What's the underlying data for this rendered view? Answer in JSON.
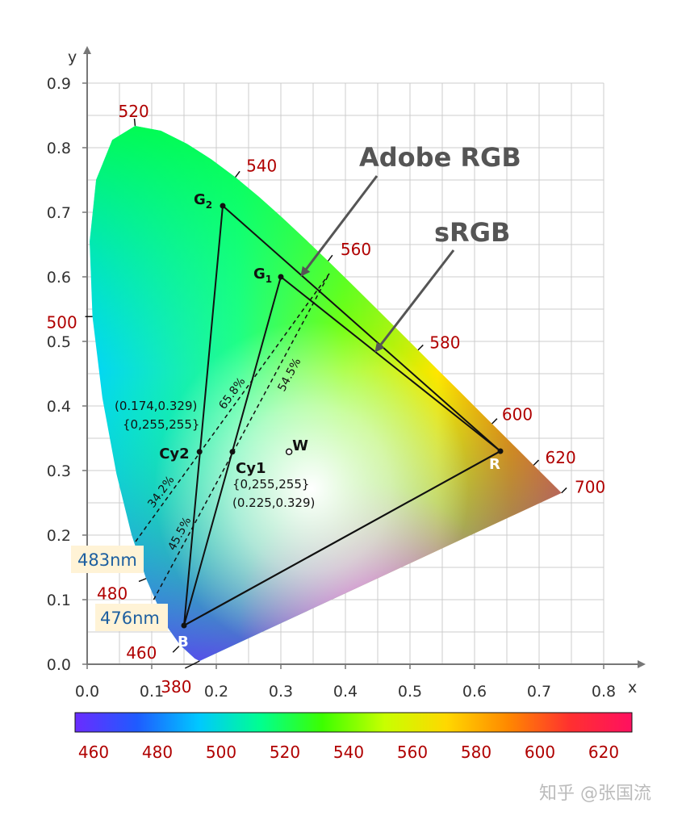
{
  "chart_data": {
    "type": "scatter",
    "xlabel": "x",
    "ylabel": "y",
    "xlim": [
      0,
      0.8
    ],
    "ylim": [
      0,
      0.9
    ],
    "xticks": [
      "0.0",
      "0.1",
      "0.2",
      "0.3",
      "0.4",
      "0.5",
      "0.6",
      "0.7",
      "0.8"
    ],
    "yticks": [
      "0.0",
      "0.1",
      "0.2",
      "0.3",
      "0.4",
      "0.5",
      "0.6",
      "0.7",
      "0.8",
      "0.9"
    ],
    "grid": true,
    "locus": [
      [
        0.1741,
        0.005
      ],
      [
        0.1666,
        0.0089
      ],
      [
        0.144,
        0.0297
      ],
      [
        0.1241,
        0.0578
      ],
      [
        0.0913,
        0.1327
      ],
      [
        0.0687,
        0.2007
      ],
      [
        0.0454,
        0.295
      ],
      [
        0.0235,
        0.4127
      ],
      [
        0.0082,
        0.5384
      ],
      [
        0.0039,
        0.6548
      ],
      [
        0.0139,
        0.7502
      ],
      [
        0.0389,
        0.812
      ],
      [
        0.0743,
        0.8338
      ],
      [
        0.1142,
        0.8262
      ],
      [
        0.1547,
        0.8059
      ],
      [
        0.1929,
        0.7816
      ],
      [
        0.2296,
        0.7543
      ],
      [
        0.2658,
        0.7243
      ],
      [
        0.3016,
        0.6923
      ],
      [
        0.3373,
        0.6589
      ],
      [
        0.3731,
        0.6245
      ],
      [
        0.4087,
        0.5896
      ],
      [
        0.4441,
        0.5547
      ],
      [
        0.4788,
        0.5202
      ],
      [
        0.5125,
        0.4866
      ],
      [
        0.5448,
        0.4544
      ],
      [
        0.5752,
        0.4242
      ],
      [
        0.6029,
        0.3965
      ],
      [
        0.627,
        0.3725
      ],
      [
        0.6482,
        0.3514
      ],
      [
        0.6658,
        0.334
      ],
      [
        0.6801,
        0.3197
      ],
      [
        0.6915,
        0.3083
      ],
      [
        0.7006,
        0.2993
      ],
      [
        0.714,
        0.2859
      ],
      [
        0.7347,
        0.2653
      ]
    ],
    "wavelength_labels": [
      {
        "nm": "380",
        "x": 0.1741,
        "y": 0.005
      },
      {
        "nm": "460",
        "x": 0.144,
        "y": 0.0297
      },
      {
        "nm": "480",
        "x": 0.0913,
        "y": 0.1327
      },
      {
        "nm": "500",
        "x": 0.0082,
        "y": 0.5384
      },
      {
        "nm": "520",
        "x": 0.0743,
        "y": 0.8338
      },
      {
        "nm": "540",
        "x": 0.2296,
        "y": 0.7543
      },
      {
        "nm": "560",
        "x": 0.3731,
        "y": 0.6245
      },
      {
        "nm": "580",
        "x": 0.5125,
        "y": 0.4866
      },
      {
        "nm": "600",
        "x": 0.627,
        "y": 0.3725
      },
      {
        "nm": "620",
        "x": 0.6915,
        "y": 0.3083
      },
      {
        "nm": "700",
        "x": 0.7347,
        "y": 0.2653
      }
    ],
    "gamuts": [
      {
        "name": "Adobe RGB",
        "points": [
          [
            0.64,
            0.33
          ],
          [
            0.21,
            0.71
          ],
          [
            0.15,
            0.06
          ]
        ]
      },
      {
        "name": "sRGB",
        "points": [
          [
            0.64,
            0.33
          ],
          [
            0.3,
            0.6
          ],
          [
            0.15,
            0.06
          ]
        ]
      }
    ],
    "points": [
      {
        "label": "R",
        "x": 0.64,
        "y": 0.33
      },
      {
        "label": "G",
        "sub": "2",
        "x": 0.21,
        "y": 0.71
      },
      {
        "label": "G",
        "sub": "1",
        "x": 0.3,
        "y": 0.6
      },
      {
        "label": "B",
        "x": 0.15,
        "y": 0.06
      },
      {
        "label": "Cy2",
        "x": 0.174,
        "y": 0.329
      },
      {
        "label": "Cy1",
        "x": 0.225,
        "y": 0.329
      },
      {
        "label": "W",
        "x": 0.3127,
        "y": 0.329
      }
    ],
    "dashed_lines": [
      {
        "from": [
          0.075,
          0.19
        ],
        "to": [
          0.375,
          0.605
        ]
      },
      {
        "from": [
          0.103,
          0.1
        ],
        "to": [
          0.375,
          0.605
        ]
      }
    ],
    "annotations": {
      "cy2_coord": "(0.174,0.329)",
      "cy2_rgb": "{0,255,255}",
      "cy1_rgb": "{0,255,255}",
      "cy1_coord": "(0.225,0.329)",
      "pct_342": "34.2%",
      "pct_658": "65.8%",
      "pct_455": "45.5%",
      "pct_545": "54.5%",
      "callout_483": "483nm",
      "callout_476": "476nm"
    },
    "colorbar": {
      "ticks": [
        "460",
        "480",
        "500",
        "520",
        "540",
        "560",
        "580",
        "600",
        "620"
      ],
      "stops": [
        "#6a2cff",
        "#1f5bff",
        "#00c8ff",
        "#00ff90",
        "#3cff00",
        "#c8ff00",
        "#ffd800",
        "#ff8800",
        "#ff3030",
        "#ff1060"
      ]
    },
    "watermark": "知乎 @张国流"
  }
}
